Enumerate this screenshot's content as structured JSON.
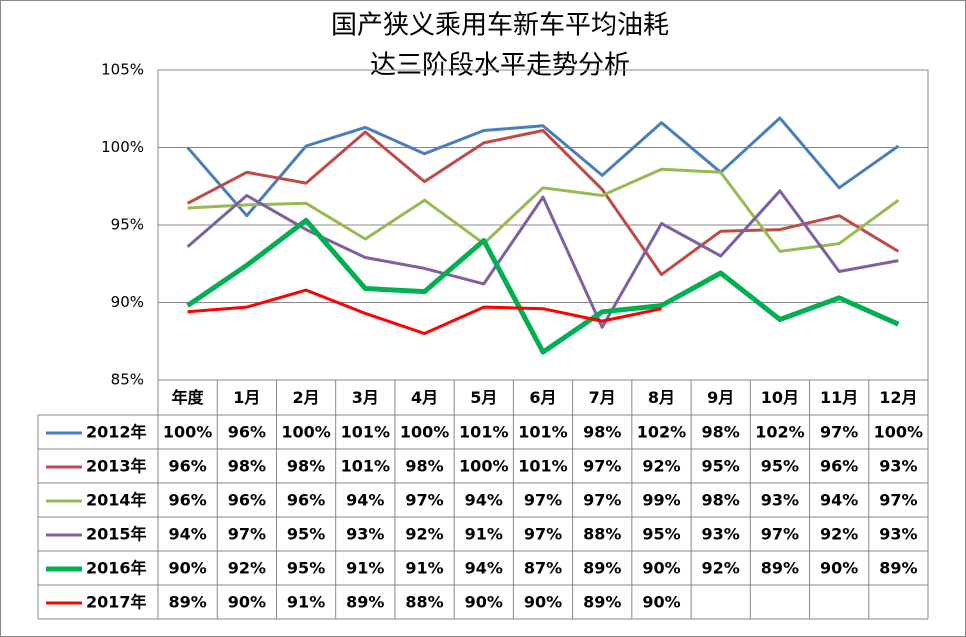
{
  "chart_data": {
    "type": "line",
    "title": [
      "国产狭义乘用车新车平均油耗",
      "达三阶段水平走势分析"
    ],
    "categories": [
      "年度",
      "1月",
      "2月",
      "3月",
      "4月",
      "5月",
      "6月",
      "7月",
      "8月",
      "9月",
      "10月",
      "11月",
      "12月"
    ],
    "ylim": [
      85,
      105
    ],
    "yticks": [
      {
        "value": 85,
        "label": "85%"
      },
      {
        "value": 90,
        "label": "90%"
      },
      {
        "value": 95,
        "label": "95%"
      },
      {
        "value": 100,
        "label": "100%"
      },
      {
        "value": 105,
        "label": "105%"
      }
    ],
    "grid": true,
    "data_table": true,
    "series": [
      {
        "name": "2012年",
        "color": "#4a7ebb",
        "width": 3,
        "values": [
          100.0,
          95.6,
          100.1,
          101.3,
          99.6,
          101.1,
          101.4,
          98.2,
          101.6,
          98.4,
          101.9,
          97.4,
          100.1
        ],
        "value_labels": [
          "100%",
          "96%",
          "100%",
          "101%",
          "100%",
          "101%",
          "101%",
          "98%",
          "102%",
          "98%",
          "102%",
          "97%",
          "100%"
        ]
      },
      {
        "name": "2013年",
        "color": "#be4b48",
        "width": 3,
        "values": [
          96.4,
          98.4,
          97.7,
          101.0,
          97.8,
          100.3,
          101.1,
          97.3,
          91.8,
          94.6,
          94.7,
          95.6,
          93.3
        ],
        "value_labels": [
          "96%",
          "98%",
          "98%",
          "101%",
          "98%",
          "100%",
          "101%",
          "97%",
          "92%",
          "95%",
          "95%",
          "96%",
          "93%"
        ]
      },
      {
        "name": "2014年",
        "color": "#98b954",
        "width": 3,
        "values": [
          96.1,
          96.3,
          96.4,
          94.1,
          96.6,
          93.8,
          97.4,
          96.9,
          98.6,
          98.4,
          93.3,
          93.8,
          96.6
        ],
        "value_labels": [
          "96%",
          "96%",
          "96%",
          "94%",
          "97%",
          "94%",
          "97%",
          "97%",
          "99%",
          "98%",
          "93%",
          "94%",
          "97%"
        ]
      },
      {
        "name": "2015年",
        "color": "#7d60a0",
        "width": 3,
        "values": [
          93.6,
          96.9,
          94.7,
          92.9,
          92.2,
          91.2,
          96.8,
          88.4,
          95.1,
          93.0,
          97.2,
          92.0,
          92.7
        ],
        "value_labels": [
          "94%",
          "97%",
          "95%",
          "93%",
          "92%",
          "91%",
          "97%",
          "88%",
          "95%",
          "93%",
          "97%",
          "92%",
          "93%"
        ]
      },
      {
        "name": "2016年",
        "color": "#00b050",
        "width": 5,
        "values": [
          89.8,
          92.4,
          95.3,
          90.9,
          90.7,
          94.0,
          86.8,
          89.4,
          89.8,
          91.9,
          88.9,
          90.3,
          88.6
        ],
        "value_labels": [
          "90%",
          "92%",
          "95%",
          "91%",
          "91%",
          "94%",
          "87%",
          "89%",
          "90%",
          "92%",
          "89%",
          "90%",
          "89%"
        ]
      },
      {
        "name": "2017年",
        "color": "#ff0000",
        "width": 3,
        "values": [
          89.4,
          89.7,
          90.8,
          89.3,
          88.0,
          89.7,
          89.6,
          88.8,
          89.6,
          null,
          null,
          null,
          null
        ],
        "value_labels": [
          "89%",
          "90%",
          "91%",
          "89%",
          "88%",
          "90%",
          "90%",
          "89%",
          "90%",
          null,
          null,
          null,
          null
        ]
      }
    ]
  }
}
